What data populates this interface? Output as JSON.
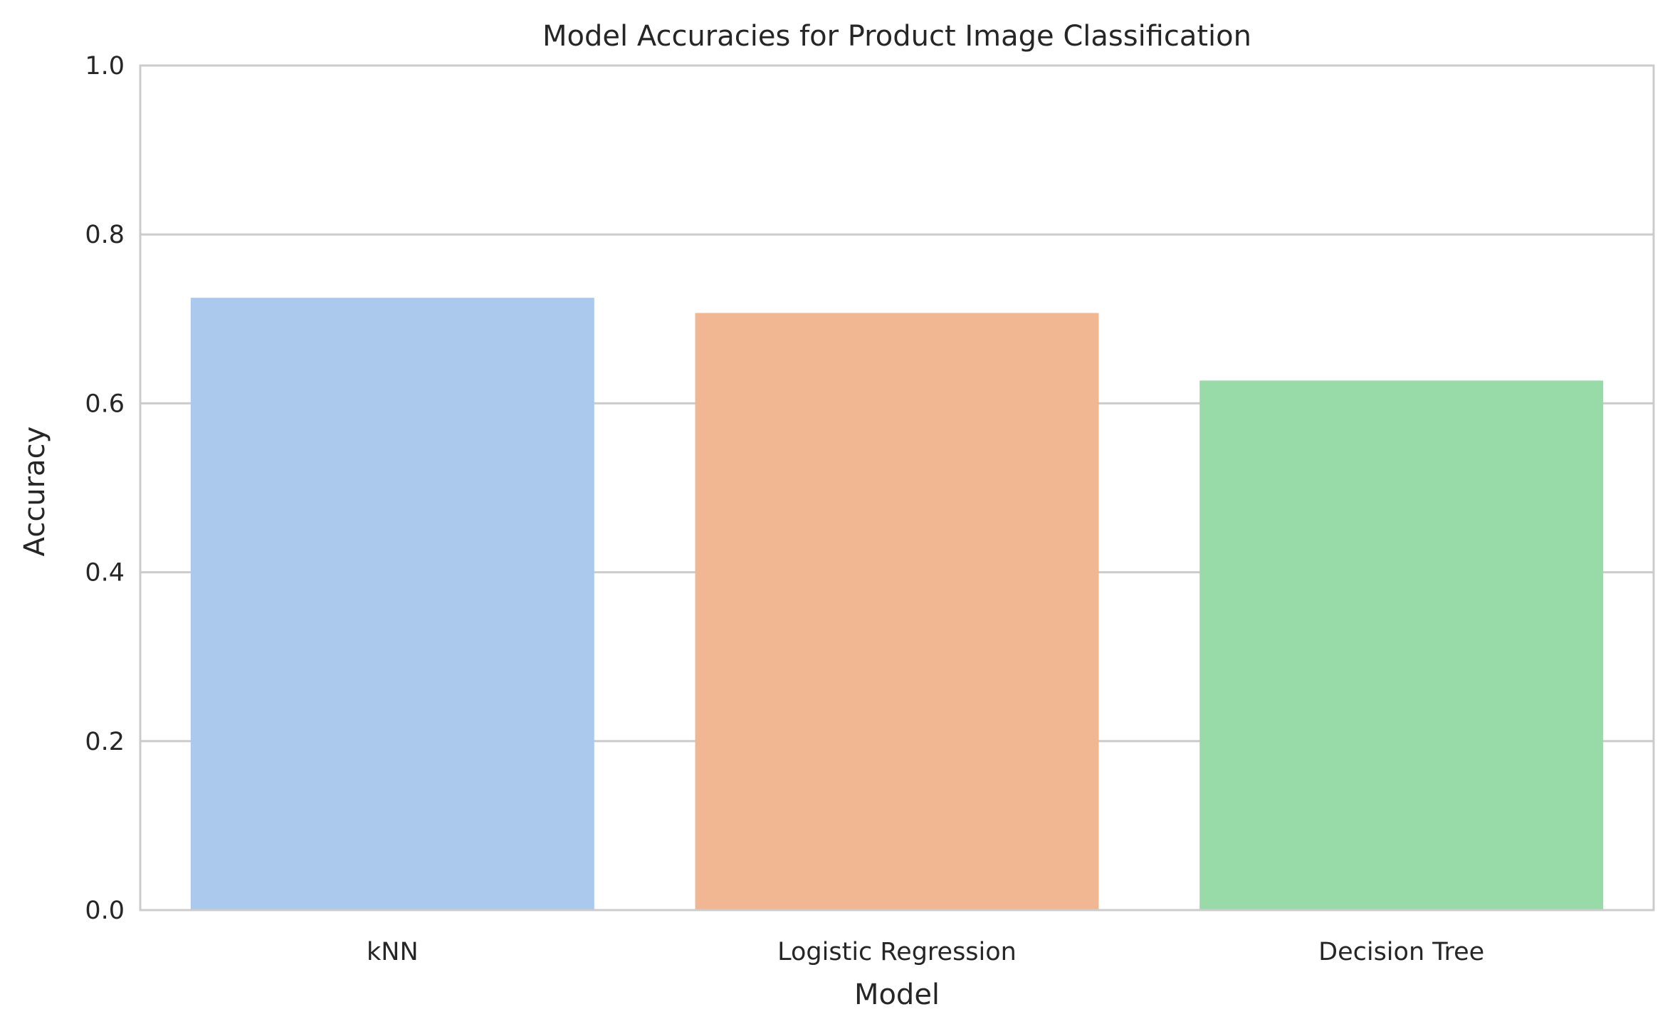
{
  "chart_data": {
    "type": "bar",
    "title": "Model Accuracies for Product Image Classification",
    "xlabel": "Model",
    "ylabel": "Accuracy",
    "categories": [
      "kNN",
      "Logistic Regression",
      "Decision Tree"
    ],
    "values": [
      0.725,
      0.707,
      0.627
    ],
    "colors": [
      "#abc9ed",
      "#f1b792",
      "#99dba8"
    ],
    "ylim": [
      0,
      1
    ],
    "yticks": [
      "0.0",
      "0.2",
      "0.4",
      "0.6",
      "0.8",
      "1.0"
    ],
    "grid": "horizontal",
    "gridColor": "#cccccc",
    "spineColor": "#cccccc"
  }
}
